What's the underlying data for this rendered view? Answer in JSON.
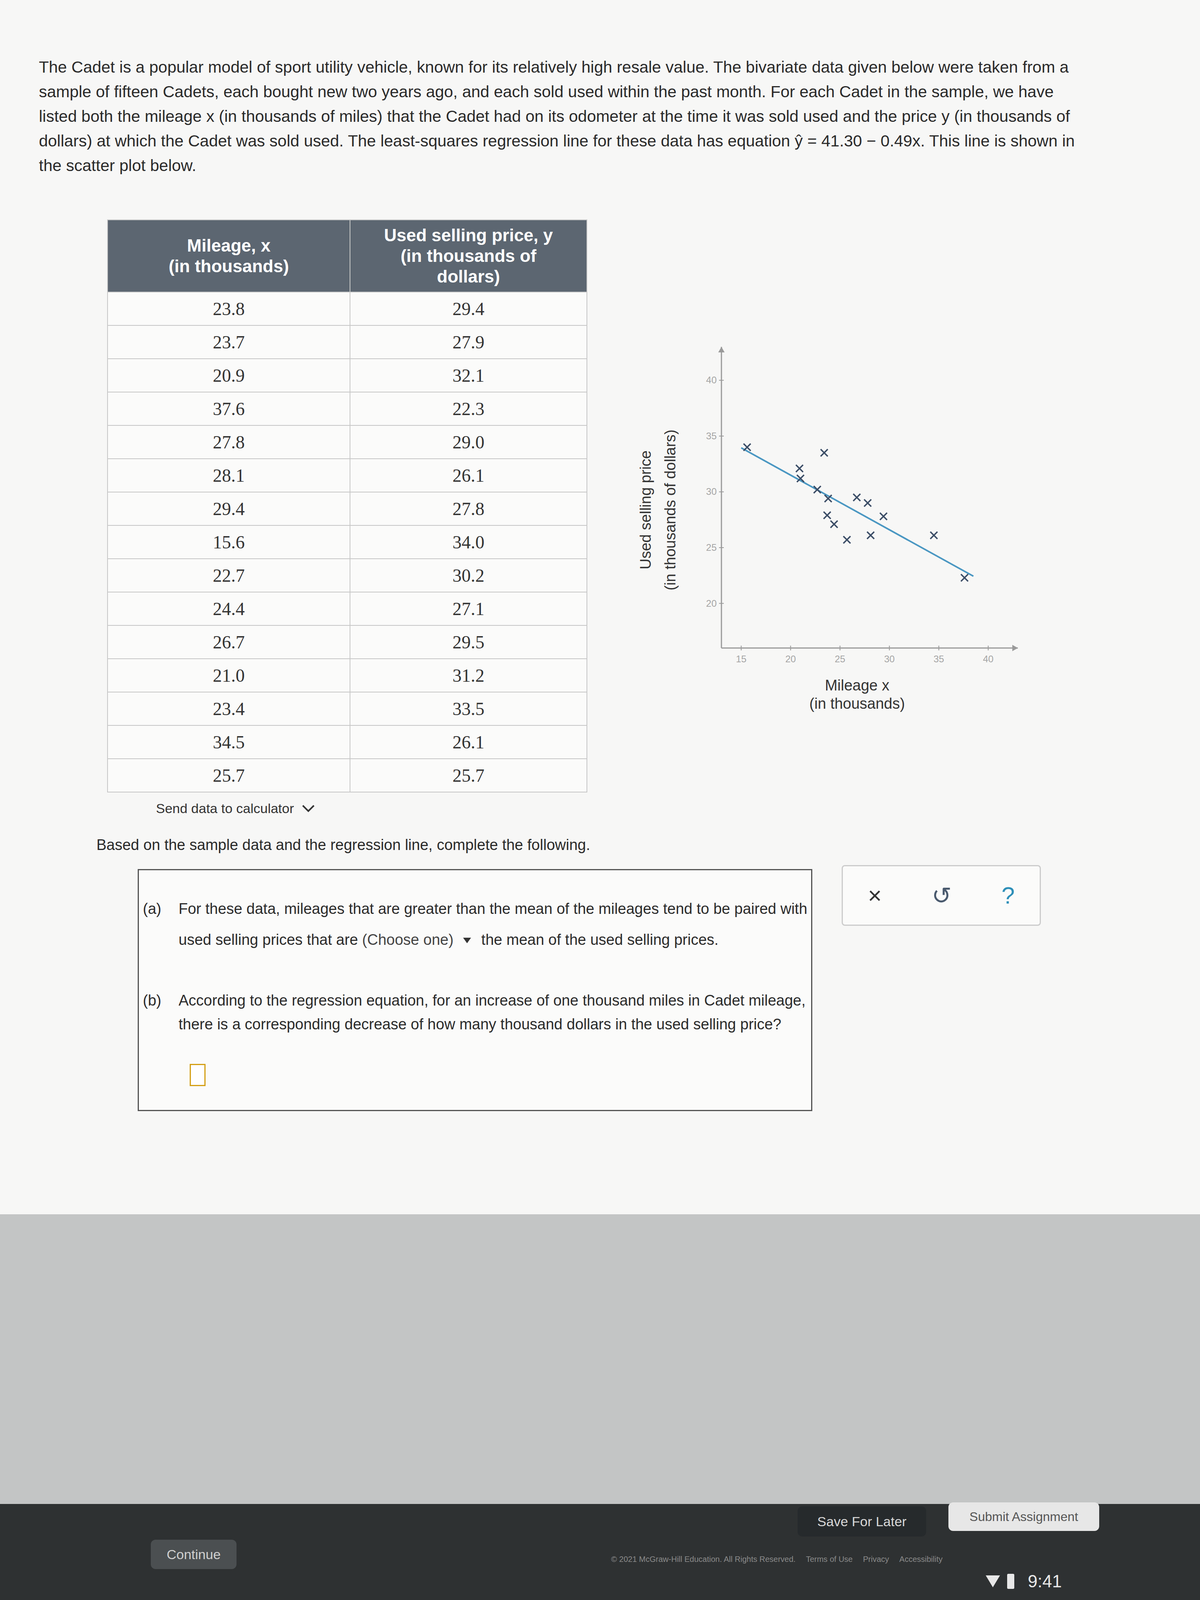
{
  "problem": {
    "intro": "The Cadet is a popular model of sport utility vehicle, known for its relatively high resale value. The bivariate data given below were taken from a sample of fifteen Cadets, each bought new two years ago, and each sold used within the past month. For each Cadet in the sample, we have listed both the mileage x (in thousands of miles) that the Cadet had on its odometer at the time it was sold used and the price y (in thousands of dollars) at which the Cadet was sold used. The least-squares regression line for these data has equation ŷ = 41.30 − 0.49x. This line is shown in the scatter plot below.",
    "prompt": "Based on the sample data and the regression line, complete the following."
  },
  "table": {
    "header": [
      [
        "Mileage, x",
        "(in thousands)"
      ],
      [
        "Used selling price, y",
        "(in thousands of",
        "dollars)"
      ]
    ],
    "rows": [
      [
        "23.8",
        "29.4"
      ],
      [
        "23.7",
        "27.9"
      ],
      [
        "20.9",
        "32.1"
      ],
      [
        "37.6",
        "22.3"
      ],
      [
        "27.8",
        "29.0"
      ],
      [
        "28.1",
        "26.1"
      ],
      [
        "29.4",
        "27.8"
      ],
      [
        "15.6",
        "34.0"
      ],
      [
        "22.7",
        "30.2"
      ],
      [
        "24.4",
        "27.1"
      ],
      [
        "26.7",
        "29.5"
      ],
      [
        "21.0",
        "31.2"
      ],
      [
        "23.4",
        "33.5"
      ],
      [
        "34.5",
        "26.1"
      ],
      [
        "25.7",
        "25.7"
      ]
    ]
  },
  "send_data": "Send data to calculator",
  "chart_data": {
    "type": "scatter",
    "x_label": [
      "Mileage x",
      "(in thousands)"
    ],
    "y_label": [
      "Used selling price",
      "(in thousands of dollars)"
    ],
    "x": [
      23.8,
      23.7,
      20.9,
      37.6,
      27.8,
      28.1,
      29.4,
      15.6,
      22.7,
      24.4,
      26.7,
      21.0,
      23.4,
      34.5,
      25.7
    ],
    "values": [
      29.4,
      27.9,
      32.1,
      22.3,
      29.0,
      26.1,
      27.8,
      34.0,
      30.2,
      27.1,
      29.5,
      31.2,
      33.5,
      26.1,
      25.7
    ],
    "xlim": [
      13,
      43
    ],
    "ylim": [
      16,
      43
    ],
    "xticks": [
      15,
      20,
      25,
      30,
      35,
      40
    ],
    "yticks": [
      20,
      25,
      30,
      35,
      40
    ],
    "marker": "x",
    "color": "#3b4d66",
    "line": {
      "intercept": 41.3,
      "slope": -0.49,
      "x_start": 15,
      "x_end": 38.5,
      "color": "#4a97c2"
    }
  },
  "questions": [
    {
      "label": "(a)",
      "before": "For these data, mileages that are greater than the mean of the mileages tend to be paired with used selling prices that are",
      "dropdown": "(Choose one)",
      "after": "the mean of the used selling prices."
    },
    {
      "label": "(b)",
      "text": "According to the regression equation, for an increase of one thousand miles in Cadet mileage, there is a corresponding decrease of how many thousand dollars in the used selling price?"
    }
  ],
  "tools": [
    "×",
    "↺",
    "?"
  ],
  "buttons": {
    "save": "Save For Later",
    "submit": "Submit Assignment",
    "continue": "Continue"
  },
  "footer": {
    "copyright": "© 2021 McGraw-Hill Education. All Rights Reserved.",
    "links": [
      "Terms of Use",
      "Privacy",
      "Accessibility"
    ]
  },
  "status": {
    "time": "9:41"
  }
}
